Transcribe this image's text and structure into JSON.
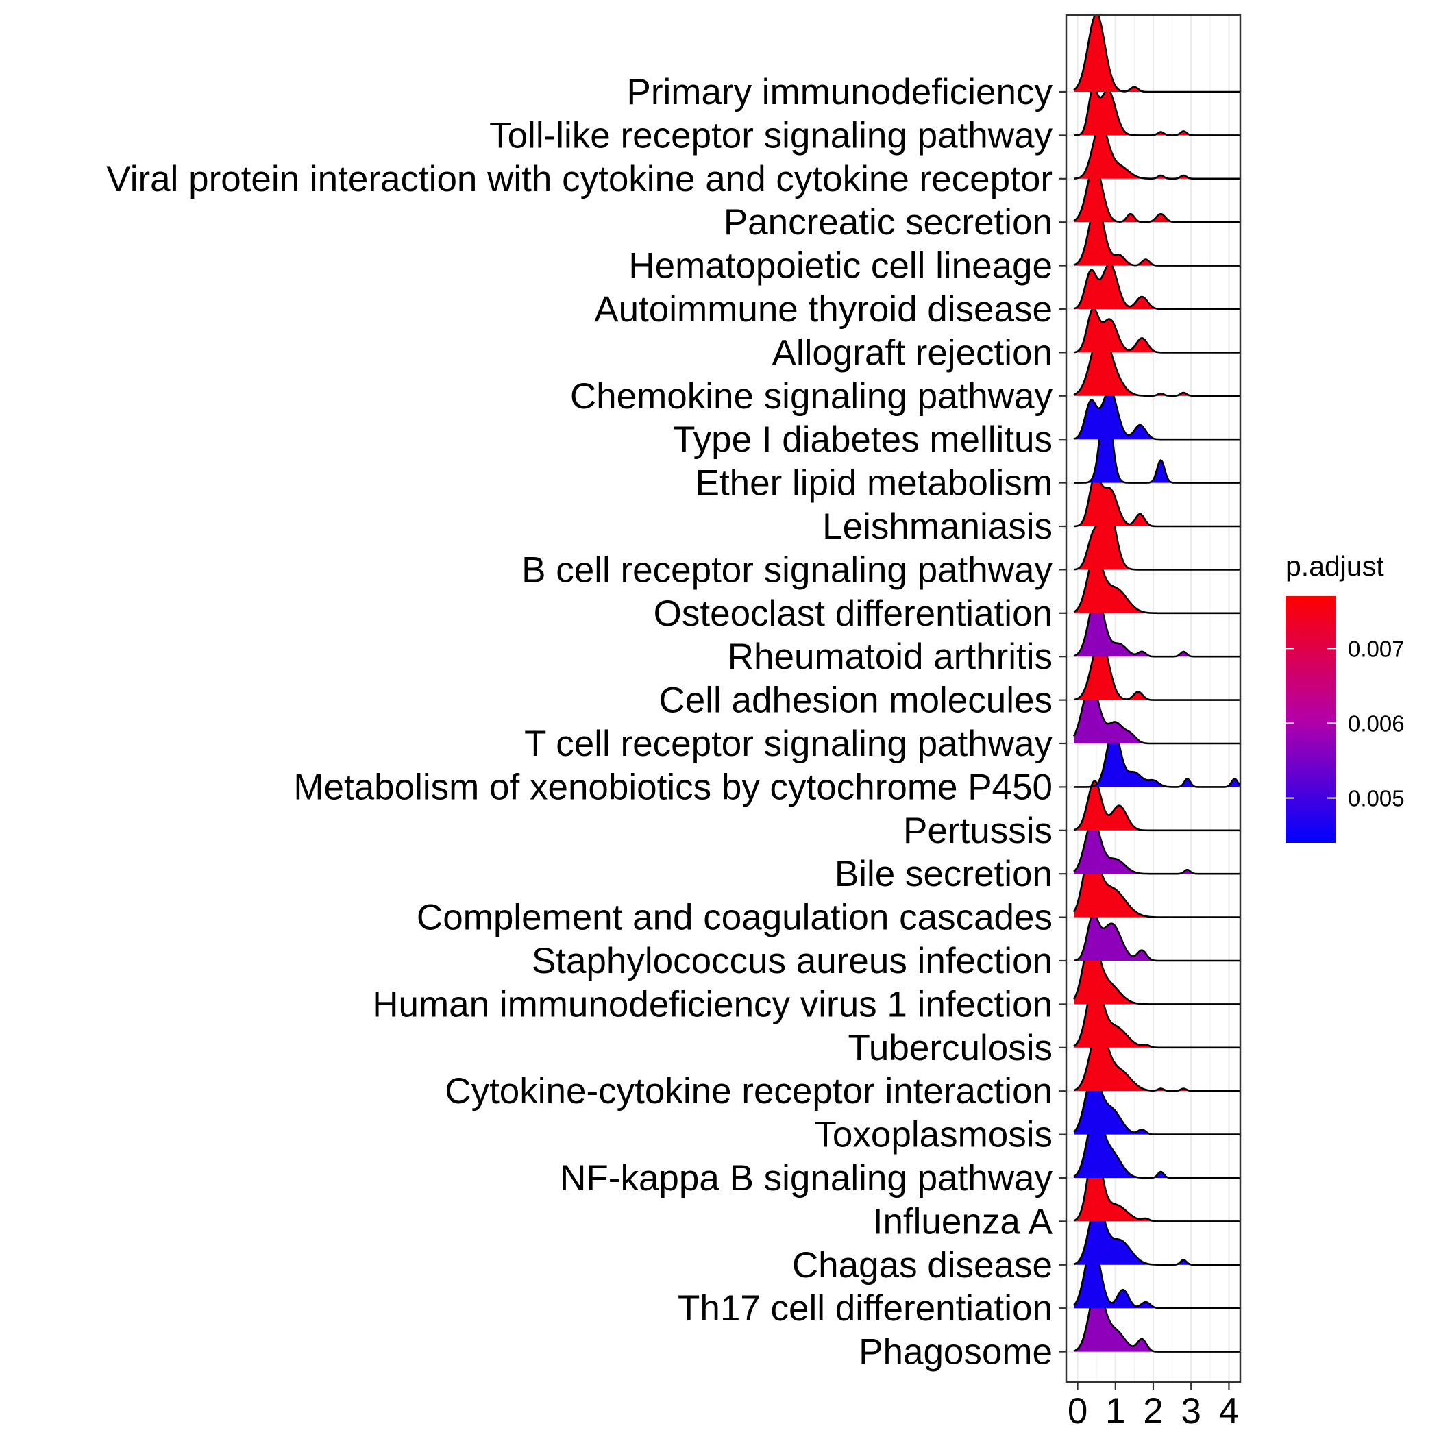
{
  "chart_data": {
    "type": "ridgeline",
    "xlim": [
      -0.3,
      4.3
    ],
    "xticks": [
      "0",
      "1",
      "2",
      "3",
      "4"
    ],
    "grid": true,
    "legend": {
      "title": "p.adjust",
      "placement": "right",
      "min": 0.0044,
      "max": 0.0077,
      "ticks": [
        "0.005",
        "0.006",
        "0.007"
      ],
      "colors": {
        "low": "#0000ff",
        "high": "#ff0000"
      }
    },
    "series": [
      {
        "name": "Primary immunodeficiency",
        "p_adjust": 0.0046,
        "peaks": [
          [
            0.5,
            1.9,
            0.22
          ],
          [
            1.5,
            0.12,
            0.1
          ]
        ]
      },
      {
        "name": "Toll-like receptor signaling pathway",
        "p_adjust": 0.0046,
        "peaks": [
          [
            0.4,
            1.0,
            0.12
          ],
          [
            0.8,
            1.1,
            0.2
          ],
          [
            2.2,
            0.08,
            0.08
          ],
          [
            2.8,
            0.1,
            0.08
          ]
        ]
      },
      {
        "name": "Viral protein interaction with cytokine and cytokine receptor",
        "p_adjust": 0.0046,
        "peaks": [
          [
            0.6,
            1.3,
            0.2
          ],
          [
            1.1,
            0.3,
            0.25
          ],
          [
            2.2,
            0.08,
            0.08
          ],
          [
            2.8,
            0.08,
            0.08
          ]
        ]
      },
      {
        "name": "Pancreatic secretion",
        "p_adjust": 0.0046,
        "peaks": [
          [
            0.45,
            1.4,
            0.2
          ],
          [
            1.4,
            0.2,
            0.1
          ],
          [
            2.2,
            0.2,
            0.12
          ]
        ]
      },
      {
        "name": "Hematopoietic cell lineage",
        "p_adjust": 0.0046,
        "peaks": [
          [
            0.5,
            1.5,
            0.2
          ],
          [
            1.1,
            0.25,
            0.15
          ],
          [
            1.8,
            0.15,
            0.1
          ]
        ]
      },
      {
        "name": "Autoimmune thyroid disease",
        "p_adjust": 0.0046,
        "peaks": [
          [
            0.35,
            0.9,
            0.15
          ],
          [
            0.85,
            1.1,
            0.2
          ],
          [
            1.7,
            0.3,
            0.15
          ]
        ]
      },
      {
        "name": "Allograft rejection",
        "p_adjust": 0.0046,
        "peaks": [
          [
            0.4,
            1.0,
            0.15
          ],
          [
            0.85,
            0.8,
            0.2
          ],
          [
            1.7,
            0.35,
            0.15
          ]
        ]
      },
      {
        "name": "Chemokine signaling pathway",
        "p_adjust": 0.0046,
        "peaks": [
          [
            0.6,
            1.5,
            0.25
          ],
          [
            1.0,
            0.3,
            0.25
          ],
          [
            2.2,
            0.06,
            0.08
          ],
          [
            2.8,
            0.08,
            0.08
          ]
        ]
      },
      {
        "name": "Type I diabetes mellitus",
        "p_adjust": 0.0075,
        "peaks": [
          [
            0.35,
            0.9,
            0.15
          ],
          [
            0.85,
            1.2,
            0.2
          ],
          [
            1.65,
            0.35,
            0.15
          ]
        ]
      },
      {
        "name": "Ether lipid metabolism",
        "p_adjust": 0.0075,
        "peaks": [
          [
            0.75,
            2.1,
            0.15
          ],
          [
            2.2,
            0.55,
            0.1
          ]
        ]
      },
      {
        "name": "Leishmaniasis",
        "p_adjust": 0.0046,
        "peaks": [
          [
            0.45,
            1.1,
            0.15
          ],
          [
            0.85,
            0.9,
            0.2
          ],
          [
            1.65,
            0.3,
            0.12
          ]
        ]
      },
      {
        "name": "B cell receptor signaling pathway",
        "p_adjust": 0.0046,
        "peaks": [
          [
            0.8,
            1.6,
            0.2
          ],
          [
            0.4,
            0.7,
            0.15
          ]
        ]
      },
      {
        "name": "Osteoclast differentiation",
        "p_adjust": 0.0046,
        "peaks": [
          [
            0.45,
            1.3,
            0.2
          ],
          [
            1.0,
            0.6,
            0.3
          ]
        ]
      },
      {
        "name": "Rheumatoid arthritis",
        "p_adjust": 0.0064,
        "peaks": [
          [
            0.5,
            1.5,
            0.2
          ],
          [
            1.1,
            0.3,
            0.2
          ],
          [
            1.7,
            0.12,
            0.1
          ],
          [
            2.8,
            0.12,
            0.08
          ]
        ]
      },
      {
        "name": "Cell adhesion molecules",
        "p_adjust": 0.0046,
        "peaks": [
          [
            0.6,
            1.5,
            0.22
          ],
          [
            1.6,
            0.2,
            0.12
          ]
        ]
      },
      {
        "name": "T cell receptor signaling pathway",
        "p_adjust": 0.0064,
        "peaks": [
          [
            0.35,
            1.45,
            0.22
          ],
          [
            1.0,
            0.5,
            0.2
          ],
          [
            1.4,
            0.2,
            0.15
          ]
        ]
      },
      {
        "name": "Metabolism of xenobiotics by cytochrome P450",
        "p_adjust": 0.0075,
        "peaks": [
          [
            0.95,
            1.4,
            0.18
          ],
          [
            1.5,
            0.35,
            0.2
          ],
          [
            2.0,
            0.15,
            0.15
          ],
          [
            2.9,
            0.2,
            0.08
          ],
          [
            4.15,
            0.2,
            0.08
          ]
        ]
      },
      {
        "name": "Pertussis",
        "p_adjust": 0.0046,
        "peaks": [
          [
            0.45,
            1.2,
            0.18
          ],
          [
            1.1,
            0.6,
            0.2
          ]
        ]
      },
      {
        "name": "Bile secretion",
        "p_adjust": 0.0064,
        "peaks": [
          [
            0.4,
            1.3,
            0.2
          ],
          [
            1.0,
            0.35,
            0.25
          ],
          [
            2.9,
            0.1,
            0.08
          ]
        ]
      },
      {
        "name": "Complement and coagulation cascades",
        "p_adjust": 0.0046,
        "peaks": [
          [
            0.35,
            1.5,
            0.2
          ],
          [
            0.9,
            0.7,
            0.35
          ]
        ]
      },
      {
        "name": "Staphylococcus aureus infection",
        "p_adjust": 0.0064,
        "peaks": [
          [
            0.4,
            1.0,
            0.15
          ],
          [
            0.9,
            0.9,
            0.25
          ],
          [
            1.7,
            0.25,
            0.12
          ]
        ]
      },
      {
        "name": "Human immunodeficiency virus 1 infection",
        "p_adjust": 0.0046,
        "peaks": [
          [
            0.35,
            1.5,
            0.2
          ],
          [
            0.8,
            0.5,
            0.3
          ]
        ]
      },
      {
        "name": "Tuberculosis",
        "p_adjust": 0.0046,
        "peaks": [
          [
            0.45,
            1.6,
            0.2
          ],
          [
            1.0,
            0.5,
            0.3
          ],
          [
            1.8,
            0.06,
            0.1
          ]
        ]
      },
      {
        "name": "Cytokine-cytokine receptor interaction",
        "p_adjust": 0.0046,
        "peaks": [
          [
            0.55,
            1.5,
            0.22
          ],
          [
            1.1,
            0.5,
            0.3
          ],
          [
            2.2,
            0.06,
            0.08
          ],
          [
            2.8,
            0.06,
            0.08
          ]
        ]
      },
      {
        "name": "Toxoplasmosis",
        "p_adjust": 0.0075,
        "peaks": [
          [
            0.4,
            1.4,
            0.2
          ],
          [
            0.9,
            0.6,
            0.25
          ],
          [
            1.7,
            0.12,
            0.1
          ]
        ]
      },
      {
        "name": "NF-kappa B signaling pathway",
        "p_adjust": 0.0075,
        "peaks": [
          [
            0.45,
            1.5,
            0.2
          ],
          [
            0.9,
            0.6,
            0.25
          ],
          [
            2.2,
            0.15,
            0.08
          ]
        ]
      },
      {
        "name": "Influenza A",
        "p_adjust": 0.0046,
        "peaks": [
          [
            0.45,
            1.8,
            0.18
          ],
          [
            1.0,
            0.4,
            0.3
          ],
          [
            1.8,
            0.06,
            0.1
          ]
        ]
      },
      {
        "name": "Chagas disease",
        "p_adjust": 0.0075,
        "peaks": [
          [
            0.5,
            1.45,
            0.2
          ],
          [
            1.1,
            0.6,
            0.3
          ],
          [
            2.8,
            0.12,
            0.08
          ]
        ]
      },
      {
        "name": "Th17 cell differentiation",
        "p_adjust": 0.0075,
        "peaks": [
          [
            0.4,
            1.6,
            0.2
          ],
          [
            1.2,
            0.45,
            0.15
          ],
          [
            1.8,
            0.15,
            0.12
          ]
        ]
      },
      {
        "name": "Phagosome",
        "p_adjust": 0.0064,
        "peaks": [
          [
            0.5,
            1.5,
            0.2
          ],
          [
            1.0,
            0.5,
            0.25
          ],
          [
            1.7,
            0.3,
            0.12
          ]
        ]
      }
    ]
  }
}
